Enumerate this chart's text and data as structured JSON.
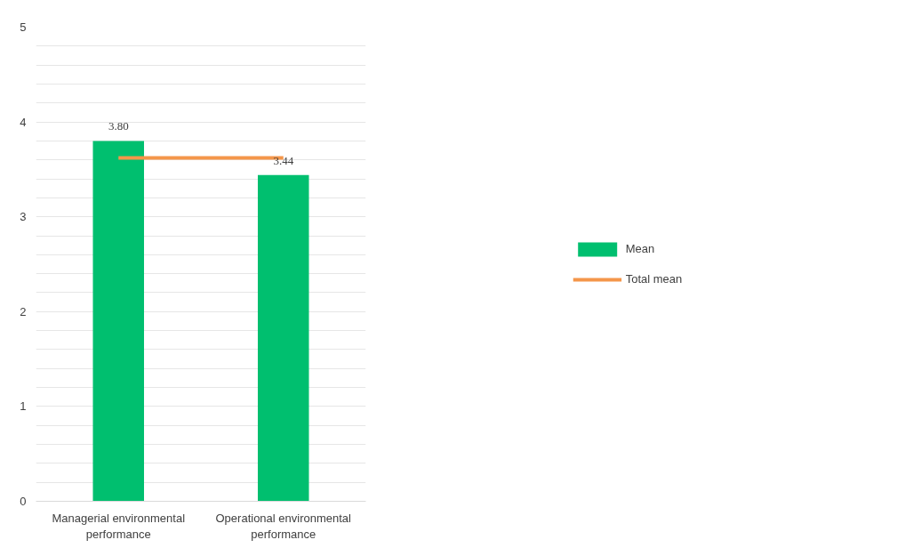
{
  "chart_data": {
    "type": "bar",
    "categories": [
      "Managerial environmental performance",
      "Operational environmental performance"
    ],
    "series": [
      {
        "name": "Mean",
        "color": "#00bf6f",
        "values": [
          3.8,
          3.44
        ],
        "value_labels": [
          "3.80",
          "3.44"
        ]
      },
      {
        "name": "Total mean",
        "type": "line",
        "color": "#f4964a",
        "values": [
          3.62,
          3.62
        ]
      }
    ],
    "ylim": [
      0,
      5
    ],
    "yticks": [
      0,
      {
        "value": 0.2,
        "label": null
      },
      {
        "value": 0.4,
        "label": null
      },
      {
        "value": 0.6,
        "label": null
      },
      {
        "value": 0.8,
        "label": null
      },
      1,
      {
        "value": 1.2,
        "label": null
      },
      {
        "value": 1.4,
        "label": null
      },
      {
        "value": 1.6,
        "label": null
      },
      {
        "value": 1.8,
        "label": null
      },
      2,
      {
        "value": 2.2,
        "label": null
      },
      {
        "value": 2.4,
        "label": null
      },
      {
        "value": 2.6,
        "label": null
      },
      {
        "value": 2.8,
        "label": null
      },
      3,
      {
        "value": 3.2,
        "label": null
      },
      {
        "value": 3.4,
        "label": null
      },
      {
        "value": 3.6,
        "label": null
      },
      {
        "value": 3.8,
        "label": null
      },
      4,
      {
        "value": 4.2,
        "label": null
      },
      {
        "value": 4.4,
        "label": null
      },
      {
        "value": 4.6,
        "label": null
      },
      {
        "value": 4.8,
        "label": null
      },
      5
    ],
    "grid": "y",
    "legend": "right",
    "line_style": "solid",
    "marker": "none"
  }
}
